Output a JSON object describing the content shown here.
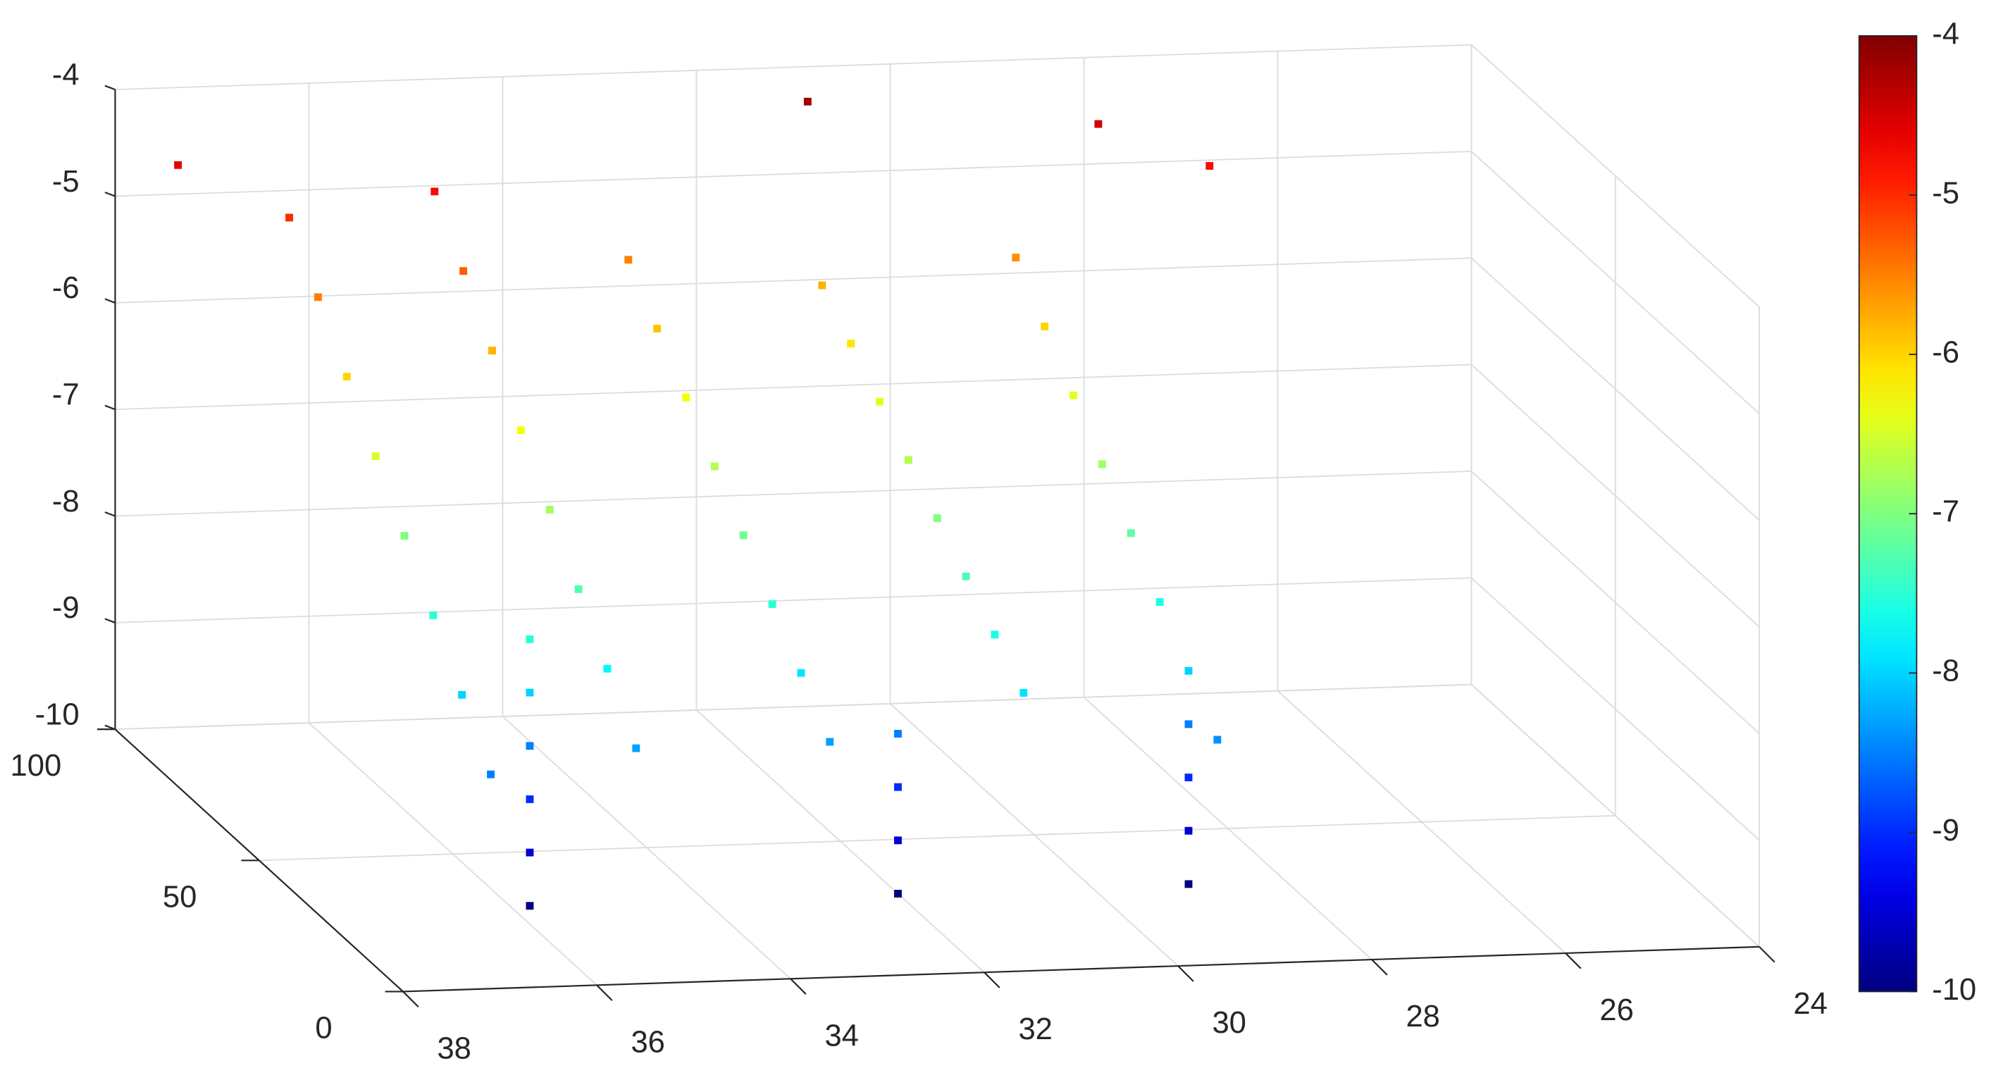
{
  "chart_data": {
    "type": "scatter3d",
    "colormap": "jet",
    "grid": true,
    "xlim": [
      24,
      38
    ],
    "ylim": [
      0,
      100
    ],
    "zlim": [
      -10,
      -4
    ],
    "xticks": [
      24,
      26,
      28,
      30,
      32,
      34,
      36,
      38
    ],
    "yticks": [
      0,
      50,
      100
    ],
    "zticks": [
      -10,
      -9,
      -8,
      -7,
      -6,
      -5,
      -4
    ],
    "clim": [
      -10,
      -4
    ],
    "cticks": [
      -10,
      -9,
      -8,
      -7,
      -6,
      -5,
      -4
    ],
    "x": [
      36.5,
      36.5,
      36.5,
      36.5,
      36.5,
      36.5,
      36.5,
      36.5,
      35,
      35,
      35,
      35,
      35,
      35,
      35,
      35,
      33,
      33,
      33,
      33,
      33,
      33,
      33,
      33,
      31,
      31,
      31,
      31,
      31,
      31,
      31,
      31,
      29,
      29,
      29,
      29,
      29,
      29,
      29,
      29,
      35.8,
      35.8,
      35.8,
      35.8,
      35.8,
      35.8,
      32,
      32,
      32,
      32,
      29,
      29,
      29,
      29,
      31,
      28,
      27,
      37.5
    ],
    "y": [
      90,
      80,
      70,
      60,
      50,
      40,
      30,
      20,
      90,
      80,
      70,
      60,
      50,
      40,
      30,
      20,
      90,
      80,
      70,
      60,
      50,
      40,
      30,
      20,
      90,
      80,
      70,
      60,
      50,
      40,
      30,
      20,
      90,
      80,
      70,
      60,
      50,
      40,
      30,
      20,
      30,
      30,
      30,
      30,
      30,
      30,
      30,
      30,
      30,
      30,
      30,
      30,
      30,
      30,
      95,
      95,
      90,
      95
    ],
    "z": [
      -5,
      -5.5,
      -6,
      -6.5,
      -7,
      -7.5,
      -8,
      -8.5,
      -4.8,
      -5.3,
      -5.8,
      -6.3,
      -6.8,
      -7.3,
      -7.8,
      -8.3,
      -5.5,
      -5.9,
      -6.3,
      -6.7,
      -7.1,
      -7.5,
      -7.9,
      -8.3,
      -5.8,
      -6.1,
      -6.4,
      -6.7,
      -7,
      -7.3,
      -7.6,
      -7.9,
      -5.6,
      -6,
      -6.4,
      -6.8,
      -7.2,
      -7.6,
      -8,
      -8.4,
      -7.5,
      -8,
      -8.5,
      -9,
      -9.5,
      -10,
      -8.5,
      -9,
      -9.5,
      -10,
      -8.5,
      -9,
      -9.5,
      -10,
      -4.2,
      -4.5,
      -4.8,
      -4.6
    ]
  }
}
